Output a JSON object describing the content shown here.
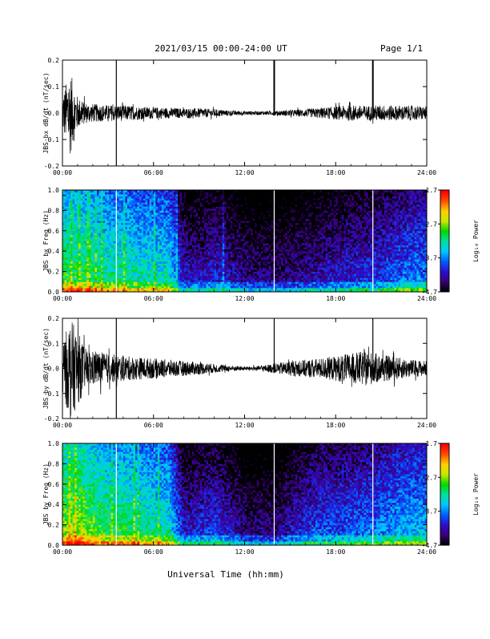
{
  "header": {
    "title": "2021/03/15  00:00-24:00 UT",
    "page_label": "Page 1/1"
  },
  "x_axis": {
    "label": "Universal Time (hh:mm)",
    "range_hours": [
      0,
      24
    ],
    "ticks": [
      0,
      6,
      12,
      18,
      24
    ],
    "tick_labels": [
      "00:00",
      "06:00",
      "12:00",
      "18:00",
      "24:00"
    ]
  },
  "colorbar": {
    "label": "Log₁₀ Power",
    "range": [
      -4.7,
      -1.7
    ],
    "ticks": [
      -1.7,
      -2.7,
      -3.7,
      -4.7
    ],
    "tick_labels": [
      "-1.7",
      "-2.7",
      "-3.7",
      "-4.7"
    ],
    "colors": [
      "#000000",
      "#3a007a",
      "#2a10d0",
      "#0060ff",
      "#00c8ff",
      "#00e0a0",
      "#00d800",
      "#c8e800",
      "#ffd000",
      "#ff5000",
      "#ff0000"
    ]
  },
  "events": {
    "vertical_spikes_hours": [
      3.55,
      13.95,
      20.45
    ]
  },
  "chart_data": [
    {
      "type": "line",
      "ylabel": "JBS bx dB/dt (nT/sec)",
      "ylim": [
        -0.2,
        0.2
      ],
      "yticks": [
        -0.2,
        -0.1,
        0.0,
        0.1,
        0.2
      ],
      "ytick_labels": [
        "-0.2",
        "-0.1",
        "0.0",
        "0.1",
        "0.2"
      ],
      "series": [
        {
          "x": [
            0,
            0.5,
            1,
            1.5,
            2,
            3,
            4,
            5,
            6,
            7,
            8,
            9,
            10,
            11,
            12,
            13,
            14,
            15,
            16,
            17,
            18,
            19,
            20,
            21,
            22,
            23,
            24
          ],
          "amplitude": [
            0.07,
            0.16,
            0.06,
            0.04,
            0.035,
            0.03,
            0.03,
            0.025,
            0.022,
            0.02,
            0.018,
            0.018,
            0.015,
            0.01,
            0.008,
            0.007,
            0.008,
            0.012,
            0.015,
            0.02,
            0.025,
            0.03,
            0.028,
            0.03,
            0.028,
            0.028,
            0.025
          ],
          "spikes": [
            {
              "x": 3.55,
              "y": [
                -0.2,
                0.2
              ]
            },
            {
              "x": 13.95,
              "y": [
                -0.01,
                0.2
              ]
            },
            {
              "x": 20.45,
              "y": [
                -0.01,
                0.2
              ]
            }
          ]
        }
      ]
    },
    {
      "type": "heatmap",
      "ylabel": "JBS bx Freq (Hz)",
      "ylim": [
        0.0,
        1.0
      ],
      "yticks": [
        0.0,
        0.2,
        0.4,
        0.6,
        0.8,
        1.0
      ],
      "ytick_labels": [
        "0.0",
        "0.2",
        "0.4",
        "0.6",
        "0.8",
        "1.0"
      ],
      "time_intensity": [
        0.62,
        0.62,
        0.58,
        0.55,
        0.55,
        0.52,
        0.5,
        0.5,
        0.22,
        0.2,
        0.24,
        0.2,
        0.15,
        0.14,
        0.14,
        0.15,
        0.18,
        0.2,
        0.22,
        0.24,
        0.26,
        0.28,
        0.32,
        0.35,
        0.36
      ],
      "white_lines_hours": [
        3.55,
        13.95,
        20.45
      ]
    },
    {
      "type": "line",
      "ylabel": "JBS by dB/dt (nT/sec)",
      "ylim": [
        -0.2,
        0.2
      ],
      "yticks": [
        -0.2,
        -0.1,
        0.0,
        0.1,
        0.2
      ],
      "ytick_labels": [
        "-0.2",
        "-0.1",
        "0.0",
        "0.1",
        "0.2"
      ],
      "series": [
        {
          "x": [
            0,
            0.5,
            1,
            1.5,
            2,
            3,
            4,
            5,
            6,
            7,
            8,
            9,
            10,
            11,
            12,
            13,
            14,
            15,
            16,
            17,
            18,
            19,
            20,
            21,
            22,
            23,
            24
          ],
          "amplitude": [
            0.1,
            0.2,
            0.15,
            0.08,
            0.07,
            0.06,
            0.05,
            0.045,
            0.04,
            0.035,
            0.03,
            0.025,
            0.018,
            0.012,
            0.008,
            0.01,
            0.02,
            0.03,
            0.035,
            0.04,
            0.05,
            0.06,
            0.07,
            0.055,
            0.045,
            0.035,
            0.03
          ],
          "spikes": [
            {
              "x": 3.55,
              "y": [
                -0.2,
                0.2
              ]
            },
            {
              "x": 13.95,
              "y": [
                0.0,
                0.2
              ]
            },
            {
              "x": 20.45,
              "y": [
                0.0,
                0.2
              ]
            }
          ]
        }
      ]
    },
    {
      "type": "heatmap",
      "ylabel": "JBS by Freq (Hz)",
      "ylim": [
        0.0,
        1.0
      ],
      "yticks": [
        0.0,
        0.2,
        0.4,
        0.6,
        0.8,
        1.0
      ],
      "ytick_labels": [
        "0.0",
        "0.2",
        "0.4",
        "0.6",
        "0.8",
        "1.0"
      ],
      "time_intensity": [
        0.7,
        0.72,
        0.66,
        0.6,
        0.6,
        0.56,
        0.54,
        0.52,
        0.22,
        0.25,
        0.28,
        0.22,
        0.14,
        0.14,
        0.14,
        0.2,
        0.26,
        0.3,
        0.3,
        0.32,
        0.34,
        0.36,
        0.4,
        0.42,
        0.42
      ],
      "white_lines_hours": [
        3.55,
        13.95,
        20.45
      ]
    }
  ]
}
